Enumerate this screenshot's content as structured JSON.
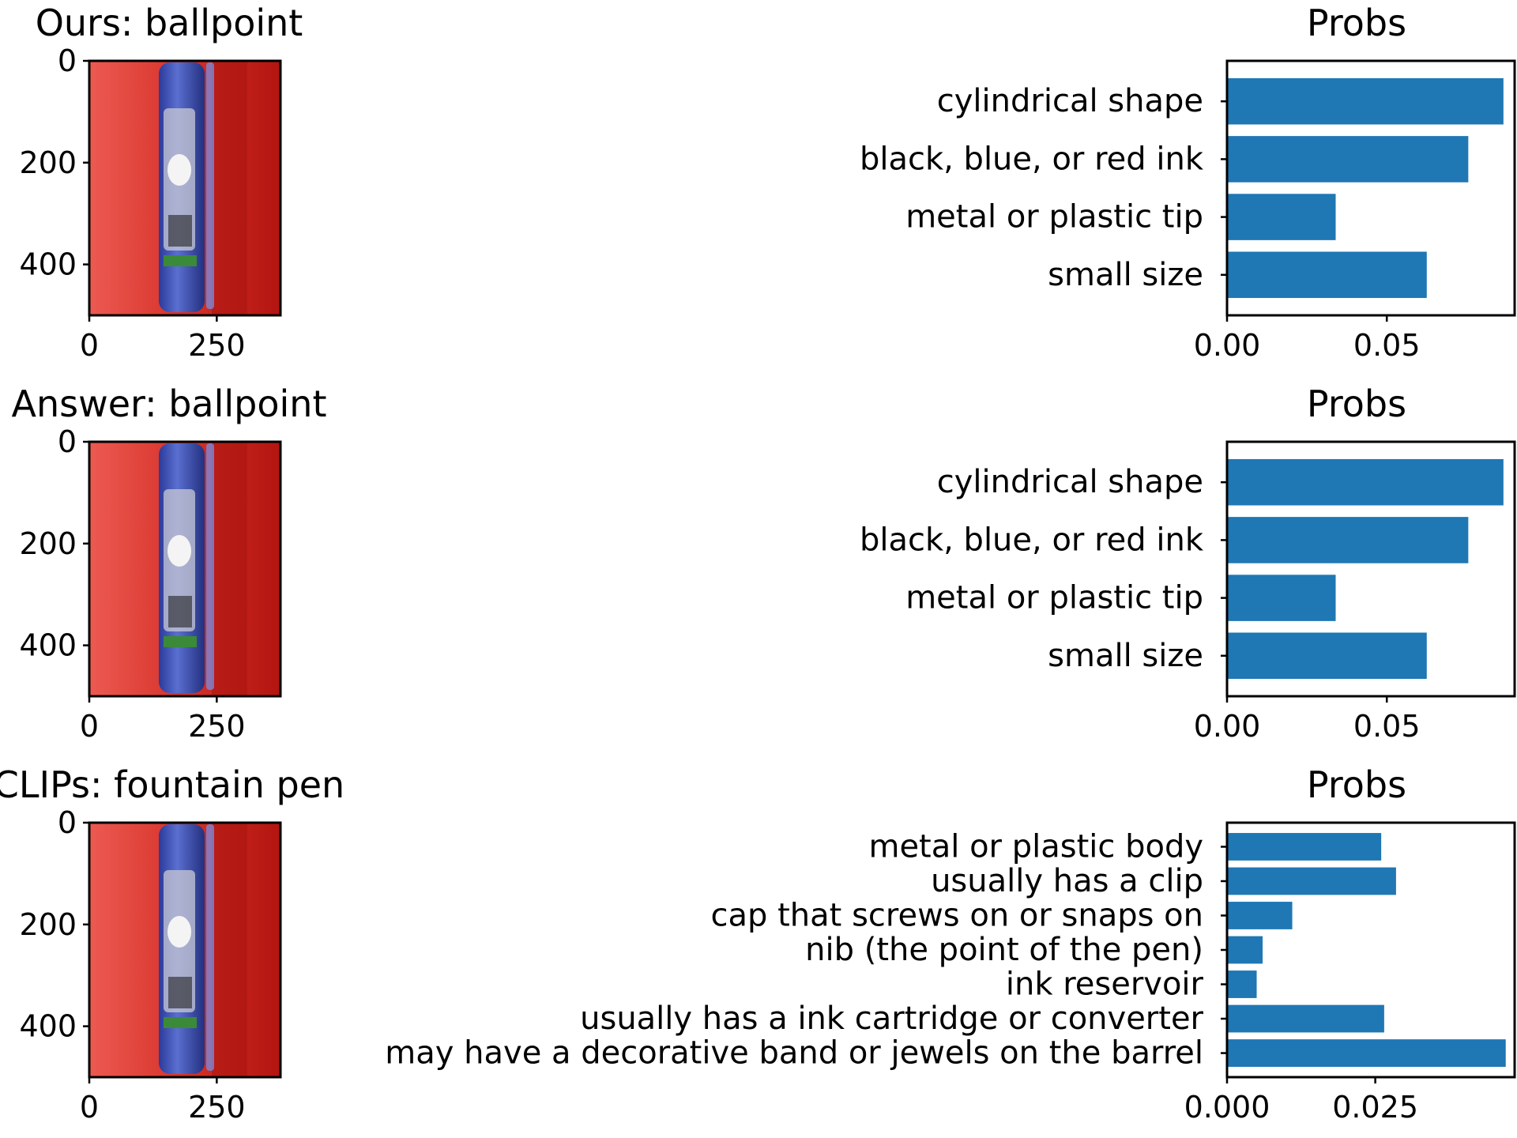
{
  "colors": {
    "bar": "#1f77b4",
    "axis": "#000000",
    "photo_bg_left": "#e8504a",
    "photo_bg_right": "#b8150f",
    "pen_body": "#3d4fb5"
  },
  "image_panel": {
    "yticks": [
      "0",
      "200",
      "400"
    ],
    "xticks": [
      "0",
      "250"
    ]
  },
  "chart_data": [
    {
      "type": "bar",
      "orientation": "horizontal",
      "image_title": "Ours: ballpoint",
      "title": "Probs",
      "categories": [
        "cylindrical shape",
        "black, blue, or red ink",
        "metal or plastic tip",
        "small size"
      ],
      "values": [
        0.0865,
        0.0755,
        0.034,
        0.0625
      ],
      "xlim": [
        0,
        0.09
      ],
      "xticks": [
        0,
        0.05
      ],
      "xtick_labels": [
        "0.00",
        "0.05"
      ]
    },
    {
      "type": "bar",
      "orientation": "horizontal",
      "image_title": "Answer: ballpoint",
      "title": "Probs",
      "categories": [
        "cylindrical shape",
        "black, blue, or red ink",
        "metal or plastic tip",
        "small size"
      ],
      "values": [
        0.0865,
        0.0755,
        0.034,
        0.0625
      ],
      "xlim": [
        0,
        0.09
      ],
      "xticks": [
        0,
        0.05
      ],
      "xtick_labels": [
        "0.00",
        "0.05"
      ]
    },
    {
      "type": "bar",
      "orientation": "horizontal",
      "image_title": "CLIPs: fountain pen",
      "title": "Probs",
      "categories": [
        "metal or plastic body",
        "usually has a clip",
        "cap that screws on or snaps on",
        "nib (the point of the pen)",
        "ink reservoir",
        "usually has a ink cartridge or converter",
        "may have a decorative band or jewels on the barrel"
      ],
      "values": [
        0.026,
        0.0285,
        0.011,
        0.006,
        0.005,
        0.0265,
        0.047
      ],
      "xlim": [
        0,
        0.0485
      ],
      "xticks": [
        0,
        0.025
      ],
      "xtick_labels": [
        "0.000",
        "0.025"
      ]
    }
  ]
}
